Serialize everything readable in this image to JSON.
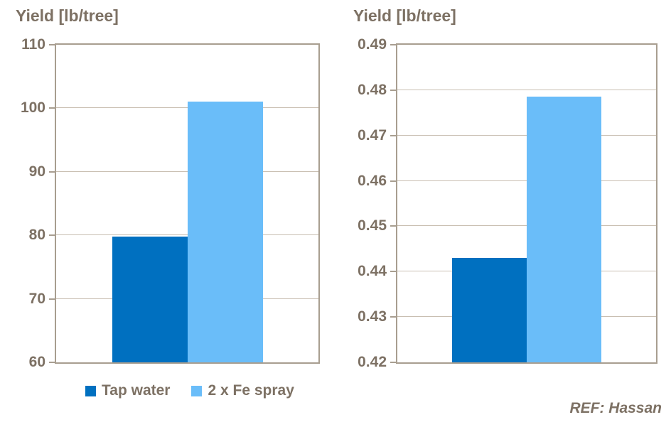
{
  "chart_data": [
    {
      "type": "bar",
      "title": "Yield [lb/tree]",
      "ylabel": "Yield [lb/tree]",
      "xlabel": "",
      "ylim": [
        60,
        110
      ],
      "yticks": [
        60,
        70,
        80,
        90,
        100,
        110
      ],
      "ytick_labels": [
        "60",
        "70",
        "80",
        "90",
        "100",
        "110"
      ],
      "grid": true,
      "legend_position": "bottom",
      "categories": [
        "Tap water",
        "2 x Fe spray"
      ],
      "series": [
        {
          "name": "Tap water",
          "value": 79.8,
          "color": "#0070C0"
        },
        {
          "name": "2 x Fe spray",
          "value": 101,
          "color": "#6ABDF9"
        }
      ]
    },
    {
      "type": "bar",
      "title": "Yield [lb/tree]",
      "ylabel": "Yield [lb/tree]",
      "xlabel": "",
      "ylim": [
        0.42,
        0.49
      ],
      "yticks": [
        0.42,
        0.43,
        0.44,
        0.45,
        0.46,
        0.47,
        0.48,
        0.49
      ],
      "ytick_labels": [
        "0.42",
        "0.43",
        "0.44",
        "0.45",
        "0.46",
        "0.47",
        "0.48",
        "0.49"
      ],
      "grid": true,
      "legend_position": "none",
      "categories": [
        "Tap water",
        "2 x Fe spray"
      ],
      "series": [
        {
          "name": "Tap water",
          "value": 0.443,
          "color": "#0070C0"
        },
        {
          "name": "2 x Fe spray",
          "value": 0.4785,
          "color": "#6ABDF9"
        }
      ]
    }
  ],
  "legend": {
    "items": [
      {
        "label": "Tap water",
        "color": "#0070C0"
      },
      {
        "label": "2 x Fe spray",
        "color": "#6ABDF9"
      }
    ]
  },
  "footer": {
    "ref": "REF: Hassan"
  },
  "colors": {
    "text": "#7D7164",
    "gridline": "#C9BFB2",
    "axis": "#A89E90",
    "series1": "#0070C0",
    "series2": "#6ABDF9"
  }
}
